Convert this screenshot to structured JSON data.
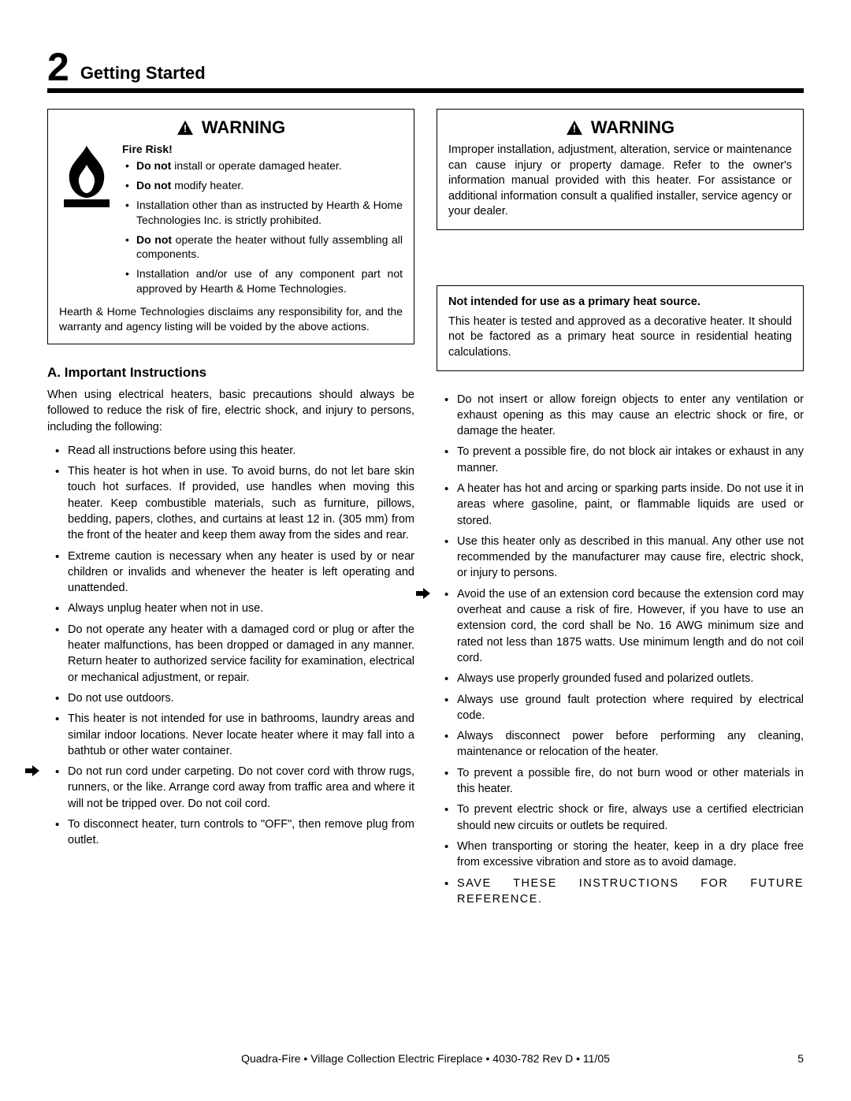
{
  "section": {
    "number": "2",
    "title": "Getting Started"
  },
  "warning_left": {
    "heading": "WARNING",
    "fire_risk_title": "Fire Risk!",
    "bullets": [
      "<b>Do not</b> install or operate damaged heater.",
      "<b>Do not</b> modify heater.",
      "Installation other than as instructed by Hearth & Home Technologies Inc. is strictly prohibited.",
      "<b>Do not</b> operate the heater without fully assembling all components.",
      "Installation and/or use of any component part not approved by Hearth & Home Technologies."
    ],
    "disclaimer": "Hearth & Home Technologies disclaims any responsibility for, and the warranty and agency listing will be voided by the above actions."
  },
  "warning_right": {
    "heading": "WARNING",
    "body": "Improper installation, adjustment, alteration, service or maintenance can cause injury or property damage. Refer to the owner's information manual provided with this heater. For assistance or additional information consult a qualified installer, service agency or your dealer."
  },
  "info_box": {
    "title": "Not intended for use as a primary heat source.",
    "body": "This heater is tested and approved as a decorative heater. It should not be factored as a primary heat source in residential heating calculations."
  },
  "subsection": {
    "title": "A. Important Instructions",
    "intro": "When using electrical heaters, basic precautions should always be followed to reduce the risk of fire, electric shock, and injury to persons, including the following:"
  },
  "instructions_left": [
    "Read all instructions before using this heater.",
    "This heater is hot when in use. To avoid burns, do not let bare skin touch hot surfaces. If provided, use handles when moving this heater. Keep combustible materials, such as furniture, pillows, bedding, papers, clothes, and curtains at least 12 in. (305 mm) from the front of the heater and keep them away from the sides and rear.",
    "Extreme caution is necessary when any heater is used by or near children or invalids and whenever the heater is left operating and unattended.",
    "Always unplug heater when not in use.",
    "Do not operate any heater with a damaged cord or plug or after the heater malfunctions, has been dropped or damaged in any manner. Return heater to authorized service facility for examination, electrical or mechanical adjustment, or repair.",
    "Do not use outdoors.",
    "This heater is not intended for use in bathrooms, laundry areas and similar indoor locations. Never locate heater where it may fall into a bathtub or other water container.",
    "Do not run cord under carpeting. Do not cover cord with throw rugs, runners, or the like. Arrange cord away from traffic area and where it will not be tripped over. Do not coil cord.",
    "To disconnect heater, turn controls to \"OFF\", then remove plug from outlet."
  ],
  "instructions_right": [
    "Do not insert or allow foreign objects to enter any ventilation or exhaust opening as this may cause an electric shock or fire, or damage the heater.",
    "To prevent a possible fire, do not block air intakes or exhaust in any manner.",
    "A heater has hot and arcing or sparking parts inside. Do not use it in areas where gasoline, paint, or flammable liquids are used or stored.",
    "Use this heater only as described in this manual. Any other use not recommended by the manufacturer may cause fire, electric shock, or injury to persons.",
    "Avoid the use of an extension cord because the extension cord may overheat and cause a risk of fire. However, if you have to use an extension cord, the cord shall be No. 16 AWG minimum size and rated not less than 1875 watts. Use minimum length and do not coil cord.",
    "Always use properly grounded fused and polarized outlets.",
    "Always use ground fault protection where required by electrical code.",
    "Always disconnect power before performing any cleaning, maintenance or relocation of the heater.",
    "To prevent a possible fire, do not burn wood or other materials in this heater.",
    "To prevent electric shock or fire, always use a certified electrician should new circuits or outlets be required.",
    "When transporting or storing the heater, keep in a dry place free from excessive vibration and store as to avoid damage.",
    "SAVE THESE INSTRUCTIONS FOR FUTURE REFERENCE."
  ],
  "arrow_left_index": 7,
  "arrow_right_index": 4,
  "footer": {
    "center": "Quadra-Fire • Village Collection Electric Fireplace • 4030-782 Rev D • 11/05",
    "page": "5"
  },
  "colors": {
    "text": "#000000",
    "bg": "#ffffff",
    "rule": "#000000"
  }
}
